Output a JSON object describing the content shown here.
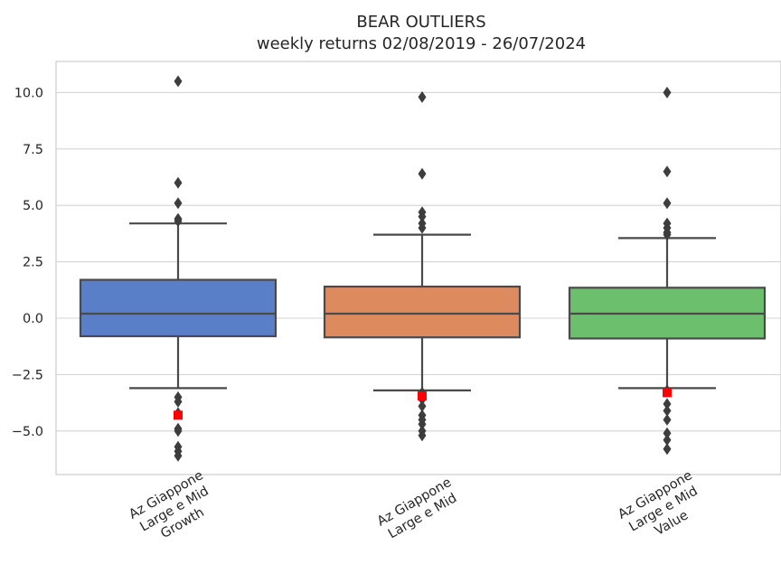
{
  "chart_data": {
    "type": "box",
    "title": "BEAR OUTLIERS",
    "subtitle": "weekly returns 02/08/2019 - 26/07/2024",
    "xlabel": "",
    "ylabel": "",
    "ylim": [
      -7.0,
      11.2
    ],
    "yticks": [
      "10.0",
      "7.5",
      "5.0",
      "2.5",
      "0.0",
      "−2.5",
      "−5.0"
    ],
    "ytick_values": [
      10.0,
      7.5,
      5.0,
      2.5,
      0.0,
      -2.5,
      -5.0
    ],
    "grid": true,
    "categories": [
      [
        "Az Giappone",
        "Large e Mid",
        "Growth"
      ],
      [
        "Az Giappone",
        "Large e Mid"
      ],
      [
        "Az Giappone",
        "Large e Mid",
        "Value"
      ]
    ],
    "series": [
      {
        "color": "#5a7fc9",
        "whisker_low": -3.1,
        "q1": -0.8,
        "median": 0.2,
        "q3": 1.7,
        "whisker_high": 4.2,
        "outliers": [
          10.5,
          6.0,
          5.1,
          4.4,
          4.3,
          -3.5,
          -3.7,
          -4.2,
          -4.9,
          -5.0,
          -5.7,
          -5.9,
          -6.1
        ],
        "highlight": -4.3
      },
      {
        "color": "#dd8a5e",
        "whisker_low": -3.2,
        "q1": -0.85,
        "median": 0.2,
        "q3": 1.4,
        "whisker_high": 3.7,
        "outliers": [
          9.8,
          6.4,
          4.7,
          4.5,
          4.2,
          4.0,
          -3.3,
          -3.6,
          -3.9,
          -4.3,
          -4.5,
          -4.7,
          -5.0,
          -5.2
        ],
        "highlight": -3.45
      },
      {
        "color": "#6cbf6c",
        "whisker_low": -3.1,
        "q1": -0.9,
        "median": 0.2,
        "q3": 1.35,
        "whisker_high": 3.55,
        "outliers": [
          10.0,
          6.5,
          5.1,
          4.2,
          4.0,
          3.8,
          3.7,
          -3.2,
          -3.8,
          -4.1,
          -4.5,
          -5.1,
          -5.4,
          -5.8
        ],
        "highlight": -3.3
      }
    ],
    "highlight_color": "#ff0000"
  }
}
